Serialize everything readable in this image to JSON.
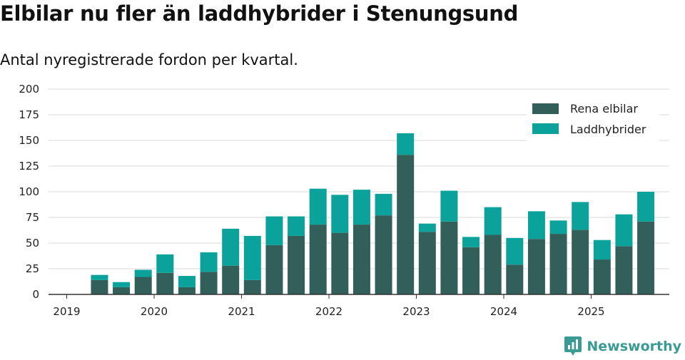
{
  "title": "Elbilar nu fler än laddhybrider i Stenungsund",
  "subtitle": "Antal nyregistrerade fordon per kvartal.",
  "brand": {
    "name": "Newsworthy",
    "icon": "newsworthy-logo-icon",
    "color": "#3a9b94"
  },
  "colors": {
    "series0": "#335f5b",
    "series1": "#0aa29a",
    "grid": "#d9d9d9",
    "axis": "#333333"
  },
  "chart_data": {
    "type": "bar",
    "stacked": true,
    "x": [
      "2019Q2",
      "2019Q3",
      "2019Q4",
      "2020Q1",
      "2020Q2",
      "2020Q3",
      "2020Q4",
      "2021Q1",
      "2021Q2",
      "2021Q3",
      "2021Q4",
      "2022Q1",
      "2022Q2",
      "2022Q3",
      "2022Q4",
      "2023Q1",
      "2023Q2",
      "2023Q3",
      "2023Q4",
      "2024Q1",
      "2024Q2",
      "2024Q3",
      "2024Q4",
      "2025Q1",
      "2025Q2",
      "2025Q3"
    ],
    "series": [
      {
        "name": "Rena elbilar",
        "values": [
          14,
          7,
          17,
          21,
          7,
          22,
          28,
          14,
          48,
          57,
          68,
          60,
          68,
          77,
          136,
          61,
          71,
          46,
          58,
          29,
          54,
          59,
          63,
          34,
          47,
          71
        ]
      },
      {
        "name": "Laddhybrider",
        "values": [
          5,
          5,
          7,
          18,
          11,
          19,
          36,
          43,
          28,
          19,
          35,
          37,
          34,
          21,
          21,
          8,
          30,
          10,
          27,
          26,
          27,
          13,
          27,
          19,
          31,
          29
        ]
      }
    ],
    "xticks": [
      "2019",
      "2020",
      "2021",
      "2022",
      "2023",
      "2024",
      "2025"
    ],
    "yticks": [
      "0",
      "25",
      "50",
      "75",
      "100",
      "125",
      "150",
      "175",
      "200"
    ],
    "ylim": [
      0,
      200
    ],
    "grid": true,
    "legend": "top-right"
  }
}
